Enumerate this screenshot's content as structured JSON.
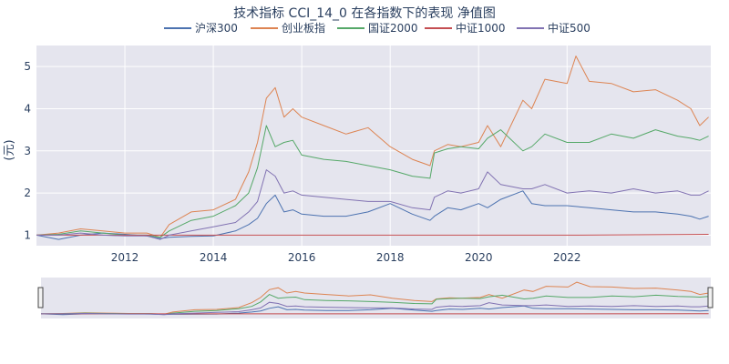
{
  "chart_data": {
    "type": "line",
    "title": "技术指标 CCI_14_0 在各指数下的表现 净值图",
    "ylabel": "(元)",
    "xlabel": "",
    "ylim": [
      0.75,
      5.5
    ],
    "xlim": [
      2010.0,
      2025.25
    ],
    "x_ticks": [
      {
        "value": 2012,
        "label": "2012"
      },
      {
        "value": 2014,
        "label": "2014"
      },
      {
        "value": 2016,
        "label": "2016"
      },
      {
        "value": 2018,
        "label": "2018"
      },
      {
        "value": 2020,
        "label": "2020"
      },
      {
        "value": 2022,
        "label": "2022"
      }
    ],
    "y_ticks": [
      {
        "value": 1,
        "label": "1"
      },
      {
        "value": 2,
        "label": "2"
      },
      {
        "value": 3,
        "label": "3"
      },
      {
        "value": 4,
        "label": "4"
      },
      {
        "value": 5,
        "label": "5"
      }
    ],
    "grid": true,
    "legend_position": "top-center",
    "series": [
      {
        "name": "沪深300",
        "color": "#4c72b0",
        "x": [
          2010.0,
          2010.5,
          2011.0,
          2011.5,
          2012.0,
          2012.5,
          2012.8,
          2013.0,
          2013.5,
          2014.0,
          2014.5,
          2014.8,
          2015.0,
          2015.2,
          2015.4,
          2015.6,
          2015.8,
          2016.0,
          2016.5,
          2017.0,
          2017.5,
          2018.0,
          2018.5,
          2018.9,
          2019.0,
          2019.3,
          2019.6,
          2020.0,
          2020.2,
          2020.5,
          2021.0,
          2021.2,
          2021.5,
          2022.0,
          2022.5,
          2023.0,
          2023.5,
          2024.0,
          2024.5,
          2024.8,
          2025.0,
          2025.2
        ],
        "values": [
          1.0,
          0.9,
          1.0,
          1.05,
          1.02,
          0.98,
          0.92,
          0.95,
          0.97,
          0.98,
          1.1,
          1.25,
          1.4,
          1.75,
          1.95,
          1.55,
          1.6,
          1.5,
          1.45,
          1.45,
          1.55,
          1.75,
          1.5,
          1.35,
          1.45,
          1.65,
          1.6,
          1.75,
          1.65,
          1.85,
          2.05,
          1.75,
          1.7,
          1.7,
          1.65,
          1.6,
          1.55,
          1.55,
          1.5,
          1.45,
          1.38,
          1.45
        ]
      },
      {
        "name": "创业板指",
        "color": "#dd8452",
        "x": [
          2010.0,
          2010.5,
          2011.0,
          2011.5,
          2012.0,
          2012.5,
          2012.8,
          2013.0,
          2013.5,
          2014.0,
          2014.5,
          2014.8,
          2015.0,
          2015.2,
          2015.4,
          2015.6,
          2015.8,
          2016.0,
          2016.5,
          2017.0,
          2017.5,
          2018.0,
          2018.5,
          2018.9,
          2019.0,
          2019.3,
          2019.6,
          2020.0,
          2020.2,
          2020.5,
          2021.0,
          2021.2,
          2021.5,
          2022.0,
          2022.2,
          2022.5,
          2023.0,
          2023.5,
          2024.0,
          2024.5,
          2024.8,
          2025.0,
          2025.2
        ],
        "values": [
          1.0,
          1.05,
          1.15,
          1.1,
          1.05,
          1.05,
          0.95,
          1.25,
          1.55,
          1.6,
          1.85,
          2.5,
          3.2,
          4.25,
          4.5,
          3.8,
          4.0,
          3.8,
          3.6,
          3.4,
          3.55,
          3.1,
          2.8,
          2.65,
          3.0,
          3.15,
          3.1,
          3.2,
          3.6,
          3.1,
          4.2,
          4.0,
          4.7,
          4.6,
          5.25,
          4.65,
          4.6,
          4.4,
          4.45,
          4.2,
          4.0,
          3.6,
          3.8
        ]
      },
      {
        "name": "国证2000",
        "color": "#55a868",
        "x": [
          2010.0,
          2010.5,
          2011.0,
          2011.5,
          2012.0,
          2012.5,
          2012.8,
          2013.0,
          2013.5,
          2014.0,
          2014.5,
          2014.8,
          2015.0,
          2015.2,
          2015.4,
          2015.6,
          2015.8,
          2016.0,
          2016.5,
          2017.0,
          2017.5,
          2018.0,
          2018.5,
          2018.9,
          2019.0,
          2019.3,
          2019.6,
          2020.0,
          2020.2,
          2020.5,
          2021.0,
          2021.2,
          2021.5,
          2022.0,
          2022.5,
          2023.0,
          2023.5,
          2024.0,
          2024.5,
          2024.8,
          2025.0,
          2025.2
        ],
        "values": [
          1.0,
          1.02,
          1.1,
          1.05,
          1.0,
          1.0,
          0.95,
          1.1,
          1.35,
          1.45,
          1.7,
          2.0,
          2.6,
          3.6,
          3.1,
          3.2,
          3.25,
          2.9,
          2.8,
          2.75,
          2.65,
          2.55,
          2.4,
          2.35,
          2.95,
          3.05,
          3.1,
          3.05,
          3.3,
          3.5,
          3.0,
          3.1,
          3.4,
          3.2,
          3.2,
          3.4,
          3.3,
          3.5,
          3.35,
          3.3,
          3.25,
          3.35
        ]
      },
      {
        "name": "中证1000",
        "color": "#c44e52",
        "x": [
          2010.0,
          2014.0,
          2018.0,
          2022.0,
          2025.2
        ],
        "values": [
          1.0,
          1.0,
          1.0,
          1.0,
          1.02
        ]
      },
      {
        "name": "中证500",
        "color": "#8172b2",
        "x": [
          2010.0,
          2010.5,
          2011.0,
          2011.5,
          2012.0,
          2012.5,
          2012.8,
          2013.0,
          2013.5,
          2014.0,
          2014.5,
          2014.8,
          2015.0,
          2015.2,
          2015.4,
          2015.6,
          2015.8,
          2016.0,
          2016.5,
          2017.0,
          2017.5,
          2018.0,
          2018.5,
          2018.9,
          2019.0,
          2019.3,
          2019.6,
          2020.0,
          2020.2,
          2020.5,
          2021.0,
          2021.2,
          2021.5,
          2022.0,
          2022.5,
          2023.0,
          2023.5,
          2024.0,
          2024.5,
          2024.8,
          2025.0,
          2025.2
        ],
        "values": [
          1.0,
          1.0,
          1.05,
          1.0,
          0.98,
          0.98,
          0.9,
          1.0,
          1.1,
          1.2,
          1.3,
          1.55,
          1.8,
          2.55,
          2.4,
          2.0,
          2.05,
          1.95,
          1.9,
          1.85,
          1.8,
          1.8,
          1.65,
          1.6,
          1.9,
          2.05,
          2.0,
          2.1,
          2.5,
          2.2,
          2.1,
          2.1,
          2.2,
          2.0,
          2.05,
          2.0,
          2.1,
          2.0,
          2.05,
          1.95,
          1.95,
          2.05
        ]
      }
    ]
  },
  "range_slider": {
    "left_handle_icon": "slider-handle-icon",
    "right_handle_icon": "slider-handle-icon"
  }
}
